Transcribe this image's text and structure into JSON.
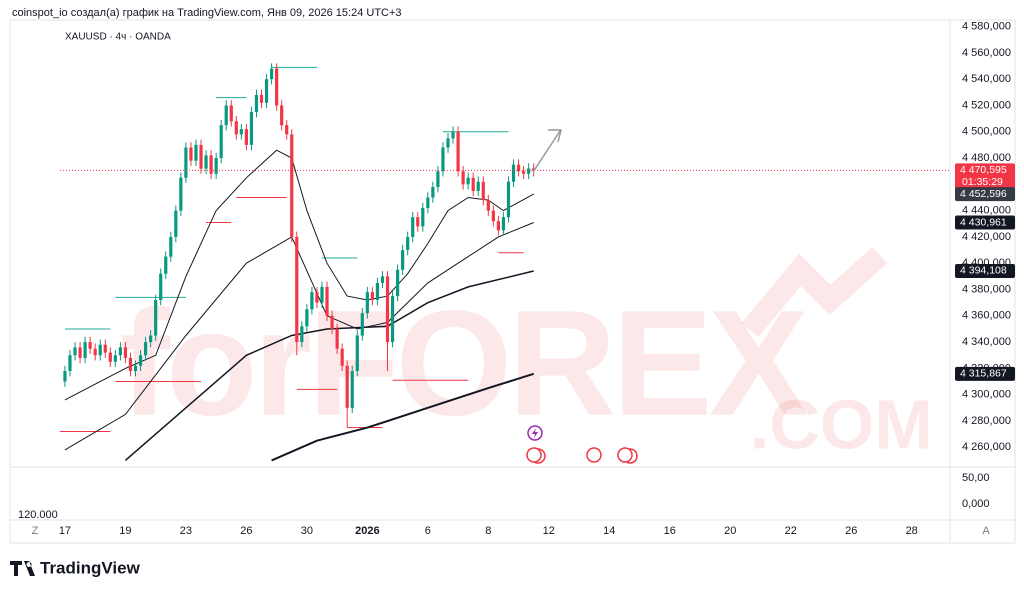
{
  "caption": "coinspot_io создал(а) график на TradingView.com, Янв 09, 2026 15:24 UTC+3",
  "footer": "TradingView",
  "buttons": [
    "Z",
    "A"
  ],
  "lower_pane": {
    "ylim": [
      -31,
      71
    ],
    "ticks": [
      {
        "value": 50,
        "label": "50,00"
      },
      {
        "value": 0,
        "label": "0,000"
      }
    ],
    "label": "120.000"
  },
  "chart_data": {
    "type": "candlestick",
    "symbol": "XAUUSD · 4ч · OANDA",
    "watermark": [
      "forFOREX",
      ".COM"
    ],
    "up_color": "#089981",
    "down_color": "#f23645",
    "xlim": [
      -10.9,
      175.6
    ],
    "xticks": [
      {
        "value": 0,
        "label": "17"
      },
      {
        "value": 12,
        "label": "19"
      },
      {
        "value": 24,
        "label": "23"
      },
      {
        "value": 36,
        "label": "26"
      },
      {
        "value": 48,
        "label": "30"
      },
      {
        "value": 60,
        "label": "2026"
      },
      {
        "value": 72,
        "label": "6"
      },
      {
        "value": 84,
        "label": "8"
      },
      {
        "value": 96,
        "label": "12"
      },
      {
        "value": 108,
        "label": "14"
      },
      {
        "value": 120,
        "label": "16"
      },
      {
        "value": 132,
        "label": "20"
      },
      {
        "value": 144,
        "label": "22"
      },
      {
        "value": 156,
        "label": "26"
      },
      {
        "value": 168,
        "label": "28"
      }
    ],
    "ylim": [
      4245,
      4585
    ],
    "yticks": [
      {
        "value": 4580,
        "label": "4 580,000"
      },
      {
        "value": 4560,
        "label": "4 560,000"
      },
      {
        "value": 4540,
        "label": "4 540,000"
      },
      {
        "value": 4520,
        "label": "4 520,000"
      },
      {
        "value": 4500,
        "label": "4 500,000"
      },
      {
        "value": 4480,
        "label": "4 480,000"
      },
      {
        "value": 4440,
        "label": "4 440,000"
      },
      {
        "value": 4420,
        "label": "4 420,000"
      },
      {
        "value": 4400,
        "label": "4 400,000"
      },
      {
        "value": 4380,
        "label": "4 380,000"
      },
      {
        "value": 4360,
        "label": "4 360,000"
      },
      {
        "value": 4340,
        "label": "4 340,000"
      },
      {
        "value": 4320,
        "label": "4 320,000"
      },
      {
        "value": 4300,
        "label": "4 300,000"
      },
      {
        "value": 4280,
        "label": "4 280,000"
      },
      {
        "value": 4260,
        "label": "4 260,000"
      }
    ],
    "grid": false,
    "open": [
      4310,
      4318,
      4330,
      4336,
      4328,
      4340,
      4335,
      4330,
      4338,
      4332,
      4325,
      4330,
      4336,
      4328,
      4318,
      4322,
      4330,
      4340,
      4345,
      4372,
      4392,
      4405,
      4420,
      4440,
      4465,
      4488,
      4478,
      4490,
      4472,
      4482,
      4468,
      4480,
      4505,
      4520,
      4508,
      4498,
      4502,
      4490,
      4515,
      4528,
      4522,
      4540,
      4548,
      4520,
      4505,
      4498,
      4420,
      4340,
      4352,
      4365,
      4378,
      4370,
      4382,
      4360,
      4350,
      4335,
      4322,
      4290,
      4318,
      4345,
      4362,
      4378,
      4372,
      4385,
      4390,
      4340,
      4375,
      4395,
      4410,
      4420,
      4435,
      4428,
      4442,
      4450,
      4458,
      4470,
      4488,
      4495,
      4500,
      4470,
      4460,
      4465,
      4455,
      4462,
      4448,
      4440,
      4432,
      4425,
      4435,
      4462,
      4475,
      4470,
      4468,
      4472
    ],
    "high": [
      4322,
      4334,
      4340,
      4340,
      4344,
      4344,
      4339,
      4342,
      4342,
      4336,
      4334,
      4340,
      4340,
      4332,
      4326,
      4334,
      4344,
      4349,
      4376,
      4396,
      4409,
      4424,
      4444,
      4469,
      4492,
      4492,
      4494,
      4494,
      4486,
      4486,
      4484,
      4509,
      4524,
      4524,
      4512,
      4506,
      4506,
      4519,
      4532,
      4532,
      4544,
      4552,
      4552,
      4524,
      4509,
      4502,
      4424,
      4356,
      4369,
      4382,
      4382,
      4386,
      4386,
      4364,
      4354,
      4339,
      4326,
      4322,
      4349,
      4366,
      4382,
      4382,
      4389,
      4394,
      4394,
      4379,
      4399,
      4414,
      4424,
      4439,
      4439,
      4446,
      4454,
      4462,
      4474,
      4492,
      4499,
      4504,
      4504,
      4474,
      4469,
      4469,
      4466,
      4466,
      4452,
      4444,
      4436,
      4439,
      4466,
      4479,
      4479,
      4474,
      4476,
      4476
    ],
    "low": [
      4306,
      4314,
      4326,
      4324,
      4324,
      4331,
      4326,
      4326,
      4328,
      4321,
      4321,
      4326,
      4324,
      4314,
      4314,
      4318,
      4326,
      4336,
      4341,
      4368,
      4388,
      4401,
      4416,
      4436,
      4461,
      4474,
      4474,
      4468,
      4468,
      4464,
      4464,
      4476,
      4501,
      4504,
      4494,
      4494,
      4486,
      4486,
      4511,
      4518,
      4518,
      4536,
      4516,
      4501,
      4494,
      4416,
      4330,
      4336,
      4348,
      4361,
      4366,
      4366,
      4356,
      4346,
      4331,
      4318,
      4275,
      4286,
      4314,
      4341,
      4358,
      4368,
      4368,
      4381,
      4318,
      4336,
      4371,
      4391,
      4406,
      4416,
      4424,
      4424,
      4438,
      4446,
      4454,
      4466,
      4484,
      4491,
      4466,
      4456,
      4456,
      4451,
      4451,
      4444,
      4436,
      4428,
      4421,
      4421,
      4431,
      4458,
      4466,
      4464,
      4464,
      4466
    ],
    "close": [
      4318,
      4330,
      4336,
      4328,
      4340,
      4335,
      4330,
      4338,
      4332,
      4325,
      4330,
      4336,
      4328,
      4318,
      4322,
      4330,
      4340,
      4345,
      4372,
      4392,
      4405,
      4420,
      4440,
      4465,
      4488,
      4478,
      4490,
      4472,
      4482,
      4468,
      4480,
      4505,
      4520,
      4508,
      4498,
      4502,
      4490,
      4515,
      4528,
      4522,
      4540,
      4548,
      4520,
      4505,
      4498,
      4420,
      4340,
      4352,
      4365,
      4378,
      4370,
      4382,
      4360,
      4350,
      4335,
      4322,
      4290,
      4318,
      4345,
      4362,
      4378,
      4372,
      4385,
      4390,
      4340,
      4375,
      4395,
      4410,
      4420,
      4435,
      4428,
      4442,
      4450,
      4458,
      4470,
      4488,
      4495,
      4500,
      4470,
      4460,
      4465,
      4455,
      4462,
      4448,
      4440,
      4432,
      4425,
      4435,
      4462,
      4475,
      4470,
      4468,
      4472,
      4470.595
    ],
    "mas": [
      {
        "color": "#131722",
        "width": 1,
        "x": [
          0,
          12,
          18,
          24,
          30,
          36,
          42,
          45,
          48,
          52,
          56,
          60,
          64,
          68,
          72,
          76,
          80,
          84,
          87,
          93
        ],
        "values": [
          4296,
          4320,
          4330,
          4390,
          4440,
          4465,
          4486,
          4480,
          4440,
          4400,
          4375,
          4372,
          4375,
          4392,
          4415,
          4440,
          4450,
          4448,
          4440,
          4452.596
        ]
      },
      {
        "color": "#131722",
        "width": 1,
        "x": [
          0,
          12,
          24,
          36,
          45,
          52,
          58,
          64,
          72,
          80,
          86,
          93
        ],
        "values": [
          4258,
          4285,
          4345,
          4400,
          4420,
          4360,
          4350,
          4355,
          4385,
          4405,
          4420,
          4430.961
        ]
      },
      {
        "color": "#131722",
        "width": 1.5,
        "x": [
          12,
          24,
          36,
          45,
          52,
          64,
          72,
          80,
          93
        ],
        "values": [
          4250,
          4290,
          4330,
          4345,
          4350,
          4352,
          4370,
          4382,
          4394.108
        ]
      },
      {
        "color": "#131722",
        "width": 2,
        "x": [
          41,
          50,
          60,
          72,
          84,
          93
        ],
        "values": [
          4250,
          4265,
          4275,
          4290,
          4305,
          4315.867
        ]
      }
    ],
    "levels": [
      {
        "x": [
          41,
          50
        ],
        "value": 4549,
        "color": "#22ab94"
      },
      {
        "x": [
          75,
          88
        ],
        "value": 4500,
        "color": "#22ab94"
      },
      {
        "x": [
          10,
          24
        ],
        "value": 4374,
        "color": "#22ab94"
      },
      {
        "x": [
          0,
          9
        ],
        "value": 4350,
        "color": "#22ab94"
      },
      {
        "x": [
          30,
          36
        ],
        "value": 4526,
        "color": "#22ab94"
      },
      {
        "x": [
          51,
          58
        ],
        "value": 4404,
        "color": "#22ab94"
      },
      {
        "x": [
          -1,
          9
        ],
        "value": 4272,
        "color": "#f23645"
      },
      {
        "x": [
          10,
          27
        ],
        "value": 4310,
        "color": "#f23645"
      },
      {
        "x": [
          46,
          54
        ],
        "value": 4304,
        "color": "#f23645"
      },
      {
        "x": [
          56,
          63
        ],
        "value": 4275,
        "color": "#f23645"
      },
      {
        "x": [
          65,
          80
        ],
        "value": 4311,
        "color": "#f23645"
      },
      {
        "x": [
          86,
          91
        ],
        "value": 4408,
        "color": "#f23645"
      },
      {
        "x": [
          28,
          33
        ],
        "value": 4431,
        "color": "#f23645"
      },
      {
        "x": [
          34,
          44
        ],
        "value": 4450,
        "color": "#f23645"
      }
    ],
    "price_tags": [
      {
        "value": 4470.595,
        "label": "4 470,595",
        "timer": "01:35:29",
        "color": "#f23645"
      },
      {
        "value": 4452.596,
        "label": "4 452,596",
        "color": "#363a45"
      },
      {
        "value": 4430.961,
        "label": "4 430,961",
        "color": "#131722"
      },
      {
        "value": 4394.108,
        "label": "4 394,108",
        "color": "#131722"
      },
      {
        "value": 4315.867,
        "label": "4 315,867",
        "color": "#131722"
      }
    ]
  }
}
